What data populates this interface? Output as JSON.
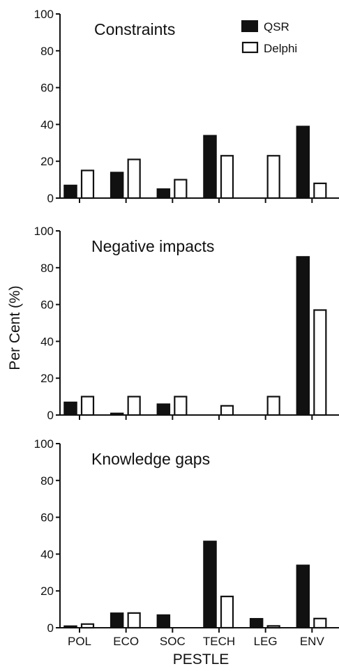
{
  "chart_data": {
    "type": "bar",
    "ylabel": "Per Cent (%)",
    "xlabel": "PESTLE",
    "categories": [
      "POL",
      "ECO",
      "SOC",
      "TECH",
      "LEG",
      "ENV"
    ],
    "ylim": [
      0,
      100
    ],
    "yticks": [
      0,
      20,
      40,
      60,
      80,
      100
    ],
    "legend": {
      "placement": "top-right of first panel",
      "entries": [
        {
          "name": "QSR",
          "color": "#111111"
        },
        {
          "name": "Delphi",
          "color": "#ffffff"
        }
      ]
    },
    "panels": [
      {
        "title": "Constraints",
        "series": [
          {
            "name": "QSR",
            "values": [
              7,
              14,
              5,
              34,
              null,
              39
            ]
          },
          {
            "name": "Delphi",
            "values": [
              15,
              21,
              10,
              23,
              23,
              8
            ]
          }
        ]
      },
      {
        "title": "Negative impacts",
        "series": [
          {
            "name": "QSR",
            "values": [
              7,
              1,
              6,
              null,
              null,
              86
            ]
          },
          {
            "name": "Delphi",
            "values": [
              10,
              10,
              10,
              5,
              10,
              57
            ]
          }
        ]
      },
      {
        "title": "Knowledge gaps",
        "series": [
          {
            "name": "QSR",
            "values": [
              1,
              8,
              7,
              47,
              5,
              34
            ]
          },
          {
            "name": "Delphi",
            "values": [
              2,
              8,
              null,
              17,
              1,
              5
            ]
          }
        ]
      }
    ]
  },
  "colors": {
    "qsr": "#111111",
    "delphi": "#ffffff",
    "axis": "#111111"
  }
}
